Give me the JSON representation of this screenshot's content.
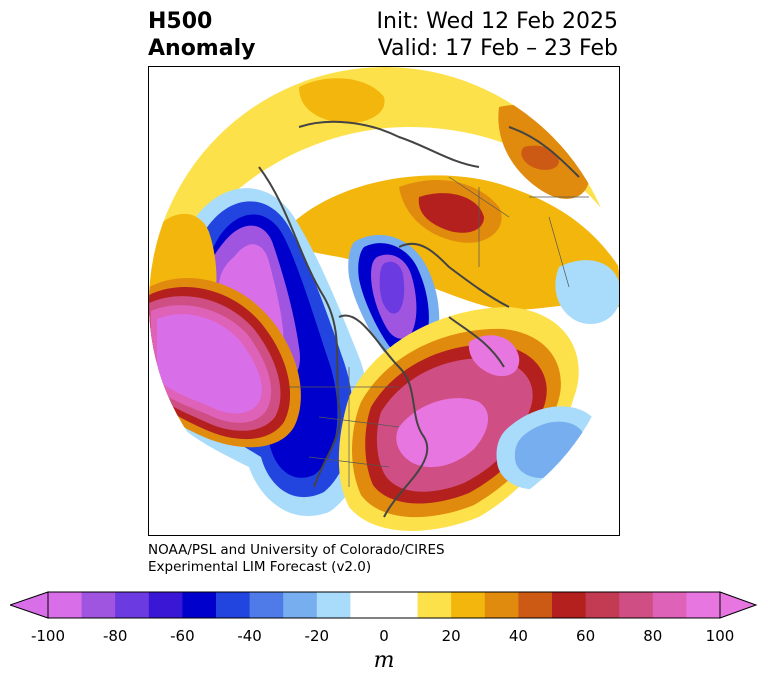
{
  "title": {
    "left_line1": "H500",
    "left_line2": "Anomaly",
    "right_line1": "Init: Wed 12 Feb 2025",
    "right_line2": "Valid: 17 Feb – 23 Feb"
  },
  "credit": {
    "line1": "NOAA/PSL and University of Colorado/CIRES",
    "line2": "Experimental LIM Forecast (v2.0)"
  },
  "colorbar": {
    "unit": "m",
    "ticks": [
      "-100",
      "-80",
      "-60",
      "-40",
      "-20",
      "0",
      "20",
      "40",
      "60",
      "80",
      "100"
    ],
    "colors": [
      "#d86fe9",
      "#9f55e0",
      "#6b3ae0",
      "#3a17d4",
      "#0000cc",
      "#2245e0",
      "#4f7be8",
      "#76aef0",
      "#a9dbfb",
      "#ffffff",
      "#ffffff",
      "#fde14a",
      "#f2b60d",
      "#e08b0e",
      "#cc5a15",
      "#b3201e",
      "#c23b52",
      "#cf4f84",
      "#de62b8",
      "#e876e0"
    ],
    "low_extend_color": "#d86fe9",
    "high_extend_color": "#e876e0"
  },
  "map": {
    "projection": "north polar stereographic",
    "colors": {
      "neg_weak": "#a9dbfb",
      "neg_2": "#76aef0",
      "neg_3": "#4f7be8",
      "neg_4": "#0000cc",
      "neg_5": "#6b3ae0",
      "neg_6": "#9f55e0",
      "neg_strong": "#d86fe9",
      "pos_weak": "#fde14a",
      "pos_2": "#f2b60d",
      "pos_3": "#e08b0e",
      "pos_4": "#cc5a15",
      "pos_5": "#b3201e",
      "pos_6": "#cf4f84",
      "pos_strong": "#e876e0",
      "coast": "#444444"
    }
  }
}
